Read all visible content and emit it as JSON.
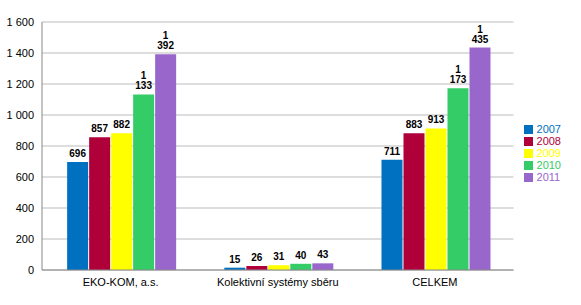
{
  "chart_data": {
    "type": "bar",
    "categories": [
      "EKO-KOM, a.s.",
      "Kolektivní systémy sběru",
      "CELKEM"
    ],
    "series": [
      {
        "name": "2007",
        "color": "#0070C0",
        "values": [
          696,
          15,
          711
        ],
        "value_labels": [
          "696",
          "15",
          "711"
        ]
      },
      {
        "name": "2008",
        "color": "#B0003A",
        "values": [
          857,
          26,
          883
        ],
        "value_labels": [
          "857",
          "26",
          "883"
        ]
      },
      {
        "name": "2009",
        "color": "#FFFF00",
        "values": [
          882,
          31,
          913
        ],
        "value_labels": [
          "882",
          "31",
          "913"
        ]
      },
      {
        "name": "2010",
        "color": "#33CC66",
        "values": [
          1133,
          40,
          1173
        ],
        "value_labels": [
          "1 133",
          "40",
          "1 173"
        ]
      },
      {
        "name": "2011",
        "color": "#9966CC",
        "values": [
          1392,
          43,
          1435
        ],
        "value_labels": [
          "1 392",
          "43",
          "1 435"
        ]
      }
    ],
    "ylim": [
      0,
      1600
    ],
    "yticks": [
      0,
      200,
      400,
      600,
      800,
      {
        "value": 1000,
        "label": "1 000"
      },
      {
        "value": 1200,
        "label": "1 200"
      },
      {
        "value": 1400,
        "label": "1 400"
      },
      {
        "value": 1600,
        "label": "1 600"
      }
    ],
    "grid": true,
    "legend": "right",
    "data_labels": true
  }
}
